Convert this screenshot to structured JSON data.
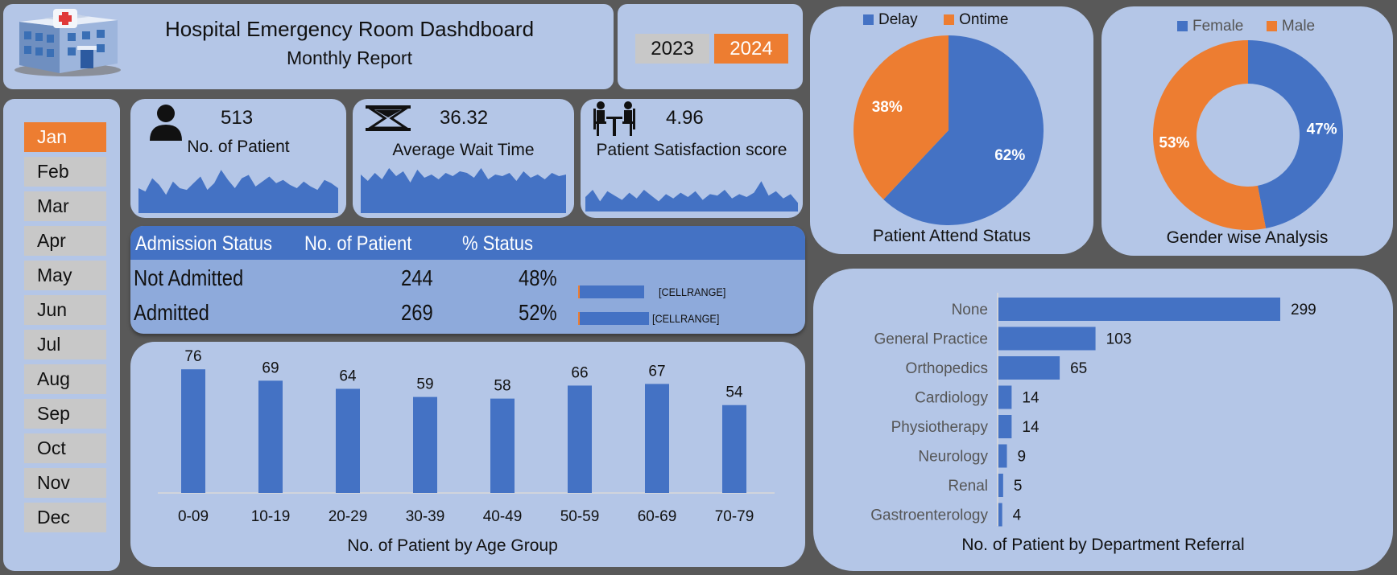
{
  "header": {
    "title": "Hospital Emergency Room Dashdboard",
    "subtitle": "Monthly Report",
    "logo_icon": "hospital-building-icon"
  },
  "years": [
    {
      "label": "2023",
      "active": false
    },
    {
      "label": "2024",
      "active": true
    }
  ],
  "months": [
    {
      "label": "Jan",
      "active": true
    },
    {
      "label": "Feb",
      "active": false
    },
    {
      "label": "Mar",
      "active": false
    },
    {
      "label": "Apr",
      "active": false
    },
    {
      "label": "May",
      "active": false
    },
    {
      "label": "Jun",
      "active": false
    },
    {
      "label": "Jul",
      "active": false
    },
    {
      "label": "Aug",
      "active": false
    },
    {
      "label": "Sep",
      "active": false
    },
    {
      "label": "Oct",
      "active": false
    },
    {
      "label": "Nov",
      "active": false
    },
    {
      "label": "Dec",
      "active": false
    }
  ],
  "kpis": [
    {
      "value": "513",
      "label": "No. of Patient",
      "icon": "person-icon",
      "spark": [
        30,
        26,
        42,
        34,
        22,
        38,
        30,
        28,
        36,
        44,
        28,
        36,
        52,
        40,
        30,
        42,
        46,
        32,
        38,
        44,
        36,
        40,
        34,
        30,
        38,
        32,
        28,
        40,
        36,
        30
      ]
    },
    {
      "value": "36.32",
      "label": "Average Wait Time",
      "icon": "hourglass-icon",
      "spark": [
        48,
        40,
        50,
        42,
        56,
        46,
        52,
        38,
        54,
        44,
        48,
        42,
        50,
        46,
        52,
        50,
        44,
        56,
        42,
        48,
        46,
        50,
        40,
        52,
        44,
        48,
        42,
        50,
        46,
        48
      ]
    },
    {
      "value": "4.96",
      "label": "Patient Satisfaction score",
      "icon": "consultation-icon",
      "spark": [
        20,
        30,
        14,
        28,
        22,
        16,
        26,
        18,
        30,
        22,
        14,
        24,
        18,
        26,
        20,
        28,
        16,
        24,
        22,
        30,
        18,
        24,
        20,
        26,
        42,
        22,
        28,
        18,
        24,
        12
      ]
    }
  ],
  "colors": {
    "blue": "#4472c4",
    "orange": "#ed7d31",
    "panel": "#b4c6e7"
  },
  "admission": {
    "headers": [
      "Admission Status",
      "No. of Patient",
      "% Status"
    ],
    "rows": [
      {
        "status": "Not Admitted",
        "count": "244",
        "pct": "48%",
        "fraction": 0.48,
        "bar_label": "[CELLRANGE]"
      },
      {
        "status": "Admitted",
        "count": "269",
        "pct": "52%",
        "fraction": 0.52,
        "bar_label": "[CELLRANGE]"
      }
    ]
  },
  "chart_data": [
    {
      "type": "pie",
      "title": "Patient Attend Status",
      "legend": [
        "Delay",
        "Ontime"
      ],
      "slices": [
        {
          "label": "Delay",
          "value": 62,
          "display": "62%",
          "color": "#4472c4"
        },
        {
          "label": "Ontime",
          "value": 38,
          "display": "38%",
          "color": "#ed7d31"
        }
      ]
    },
    {
      "type": "pie",
      "title": "Gender wise Analysis",
      "legend": [
        "Female",
        "Male"
      ],
      "slices": [
        {
          "label": "Female",
          "value": 47,
          "display": "47%",
          "color": "#4472c4"
        },
        {
          "label": "Male",
          "value": 53,
          "display": "53%",
          "color": "#ed7d31"
        }
      ]
    },
    {
      "type": "bar",
      "title": "No. of Patient by Age Group",
      "categories": [
        "0-09",
        "10-19",
        "20-29",
        "30-39",
        "40-49",
        "50-59",
        "60-69",
        "70-79"
      ],
      "values": [
        76,
        69,
        64,
        59,
        58,
        66,
        67,
        54
      ],
      "ylim": [
        0,
        85
      ]
    },
    {
      "type": "bar",
      "orientation": "horizontal",
      "title": "No. of Patient by Department Referral",
      "categories": [
        "None",
        "General Practice",
        "Orthopedics",
        "Cardiology",
        "Physiotherapy",
        "Neurology",
        "Renal",
        "Gastroenterology"
      ],
      "values": [
        299,
        103,
        65,
        14,
        14,
        9,
        5,
        4
      ],
      "xlim": [
        0,
        340
      ]
    }
  ]
}
